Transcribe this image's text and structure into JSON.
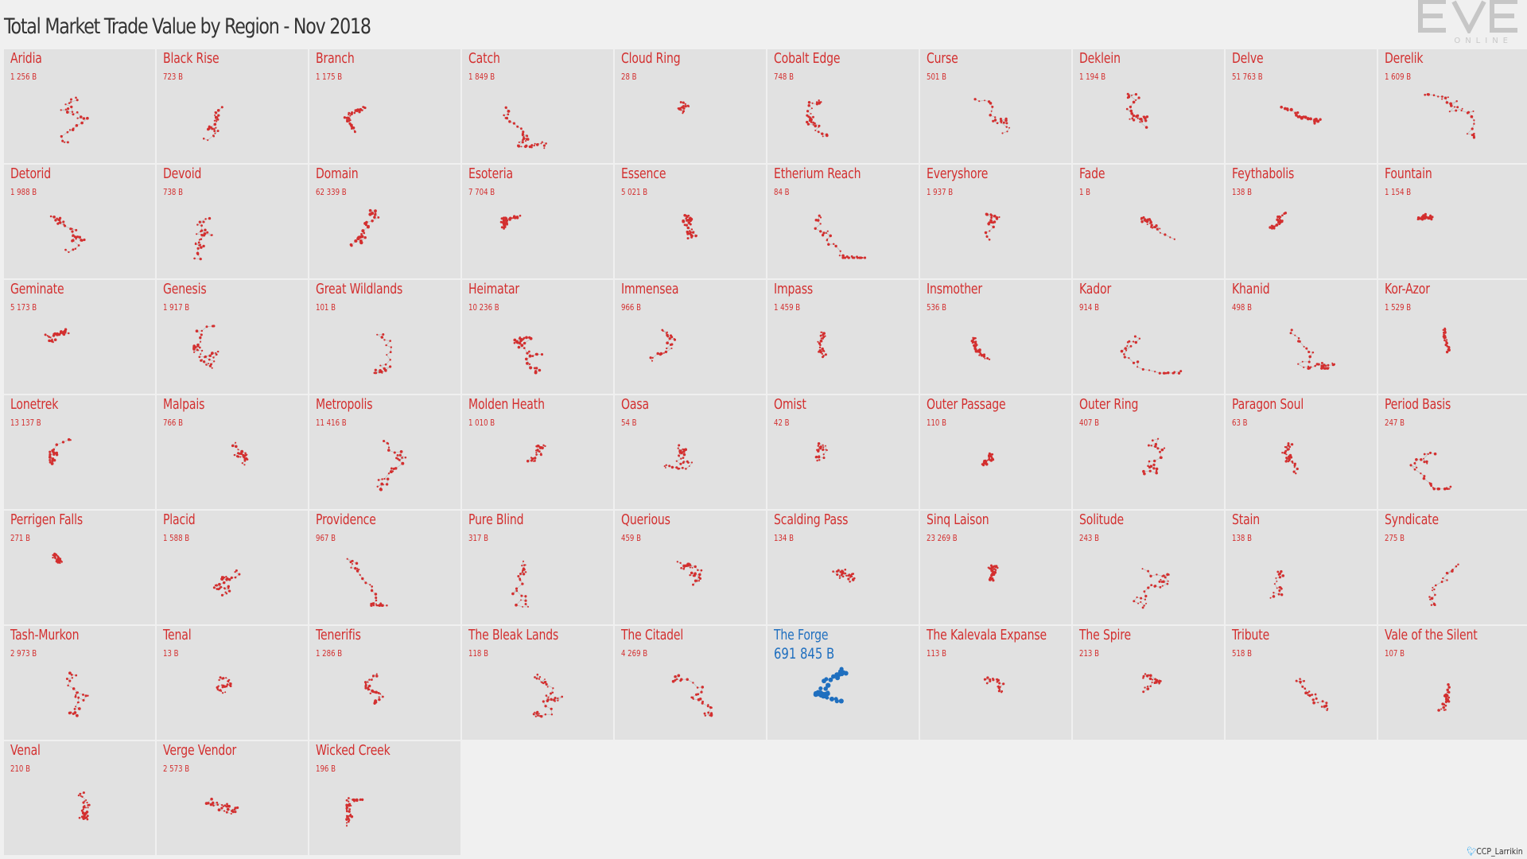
{
  "header": {
    "title": "Total Market Trade Value by Region - Nov 2018",
    "logo_text": "EVE",
    "logo_subtext": "ONLINE"
  },
  "credit": "CCP_Larrikin",
  "colors": {
    "default": "#d32f2f",
    "highlight": "#1f6fbf",
    "tile_bg": "#e1e1e1",
    "link": "#bdbdbd"
  },
  "chart_data": {
    "type": "small-multiples",
    "title": "Total Market Trade Value by Region - Nov 2018",
    "unit": "B",
    "highlighted": "The Forge",
    "regions": [
      {
        "name": "Aridia",
        "label": "1 256 B",
        "value": 1256
      },
      {
        "name": "Black Rise",
        "label": "723 B",
        "value": 723
      },
      {
        "name": "Branch",
        "label": "1 175 B",
        "value": 1175
      },
      {
        "name": "Catch",
        "label": "1 849 B",
        "value": 1849
      },
      {
        "name": "Cloud Ring",
        "label": "28 B",
        "value": 28
      },
      {
        "name": "Cobalt Edge",
        "label": "748 B",
        "value": 748
      },
      {
        "name": "Curse",
        "label": "501 B",
        "value": 501
      },
      {
        "name": "Deklein",
        "label": "1 194 B",
        "value": 1194
      },
      {
        "name": "Delve",
        "label": "51 763 B",
        "value": 51763
      },
      {
        "name": "Derelik",
        "label": "1 609 B",
        "value": 1609
      },
      {
        "name": "Detorid",
        "label": "1 988 B",
        "value": 1988
      },
      {
        "name": "Devoid",
        "label": "738 B",
        "value": 738
      },
      {
        "name": "Domain",
        "label": "62 339 B",
        "value": 62339
      },
      {
        "name": "Esoteria",
        "label": "7 704 B",
        "value": 7704
      },
      {
        "name": "Essence",
        "label": "5 021 B",
        "value": 5021
      },
      {
        "name": "Etherium Reach",
        "label": "84 B",
        "value": 84
      },
      {
        "name": "Everyshore",
        "label": "1 937 B",
        "value": 1937
      },
      {
        "name": "Fade",
        "label": "1 B",
        "value": 1
      },
      {
        "name": "Feythabolis",
        "label": "138 B",
        "value": 138
      },
      {
        "name": "Fountain",
        "label": "1 154 B",
        "value": 1154
      },
      {
        "name": "Geminate",
        "label": "5 173 B",
        "value": 5173
      },
      {
        "name": "Genesis",
        "label": "1 917 B",
        "value": 1917
      },
      {
        "name": "Great Wildlands",
        "label": "101 B",
        "value": 101
      },
      {
        "name": "Heimatar",
        "label": "10 236 B",
        "value": 10236
      },
      {
        "name": "Immensea",
        "label": "966 B",
        "value": 966
      },
      {
        "name": "Impass",
        "label": "1 459 B",
        "value": 1459
      },
      {
        "name": "Insmother",
        "label": "536 B",
        "value": 536
      },
      {
        "name": "Kador",
        "label": "914 B",
        "value": 914
      },
      {
        "name": "Khanid",
        "label": "498 B",
        "value": 498
      },
      {
        "name": "Kor-Azor",
        "label": "1 529 B",
        "value": 1529
      },
      {
        "name": "Lonetrek",
        "label": "13 137 B",
        "value": 13137
      },
      {
        "name": "Malpais",
        "label": "766 B",
        "value": 766
      },
      {
        "name": "Metropolis",
        "label": "11 416 B",
        "value": 11416
      },
      {
        "name": "Molden Heath",
        "label": "1 010 B",
        "value": 1010
      },
      {
        "name": "Oasa",
        "label": "54 B",
        "value": 54
      },
      {
        "name": "Omist",
        "label": "42 B",
        "value": 42
      },
      {
        "name": "Outer Passage",
        "label": "110 B",
        "value": 110
      },
      {
        "name": "Outer Ring",
        "label": "407 B",
        "value": 407
      },
      {
        "name": "Paragon Soul",
        "label": "63 B",
        "value": 63
      },
      {
        "name": "Period Basis",
        "label": "247 B",
        "value": 247
      },
      {
        "name": "Perrigen Falls",
        "label": "271 B",
        "value": 271
      },
      {
        "name": "Placid",
        "label": "1 588 B",
        "value": 1588
      },
      {
        "name": "Providence",
        "label": "967 B",
        "value": 967
      },
      {
        "name": "Pure Blind",
        "label": "317 B",
        "value": 317
      },
      {
        "name": "Querious",
        "label": "459 B",
        "value": 459
      },
      {
        "name": "Scalding Pass",
        "label": "134 B",
        "value": 134
      },
      {
        "name": "Sinq Laison",
        "label": "23 269 B",
        "value": 23269
      },
      {
        "name": "Solitude",
        "label": "243 B",
        "value": 243
      },
      {
        "name": "Stain",
        "label": "138 B",
        "value": 138
      },
      {
        "name": "Syndicate",
        "label": "275 B",
        "value": 275
      },
      {
        "name": "Tash-Murkon",
        "label": "2 973 B",
        "value": 2973
      },
      {
        "name": "Tenal",
        "label": "13 B",
        "value": 13
      },
      {
        "name": "Tenerifis",
        "label": "1 286 B",
        "value": 1286
      },
      {
        "name": "The Bleak Lands",
        "label": "118 B",
        "value": 118
      },
      {
        "name": "The Citadel",
        "label": "4 269 B",
        "value": 4269
      },
      {
        "name": "The Forge",
        "label": "691 845 B",
        "value": 691845
      },
      {
        "name": "The Kalevala Expanse",
        "label": "113 B",
        "value": 113
      },
      {
        "name": "The Spire",
        "label": "213 B",
        "value": 213
      },
      {
        "name": "Tribute",
        "label": "518 B",
        "value": 518
      },
      {
        "name": "Vale of the Silent",
        "label": "107 B",
        "value": 107
      },
      {
        "name": "Venal",
        "label": "210 B",
        "value": 210
      },
      {
        "name": "Verge Vendor",
        "label": "2 573 B",
        "value": 2573
      },
      {
        "name": "Wicked Creek",
        "label": "196 B",
        "value": 196
      }
    ]
  }
}
